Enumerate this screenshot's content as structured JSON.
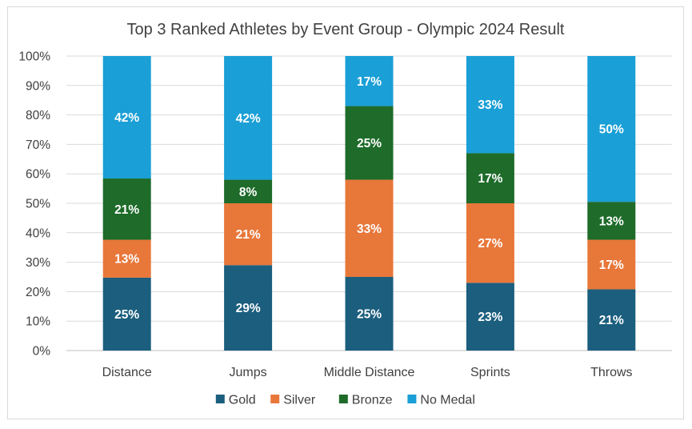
{
  "chart_data": {
    "type": "bar",
    "stacked": true,
    "percent_stacked": true,
    "title": "Top 3 Ranked Athletes by Event Group - Olympic 2024 Result",
    "xlabel": "",
    "ylabel": "",
    "ylim": [
      0,
      100
    ],
    "yticks": [
      "0%",
      "10%",
      "20%",
      "30%",
      "40%",
      "50%",
      "60%",
      "70%",
      "80%",
      "90%",
      "100%"
    ],
    "grid": true,
    "legend_position": "bottom",
    "categories": [
      "Distance",
      "Jumps",
      "Middle Distance",
      "Sprints",
      "Throws"
    ],
    "series": [
      {
        "name": "Gold",
        "color": "#1b5e7e",
        "values": [
          25,
          29,
          25,
          23,
          21
        ],
        "labels": [
          "25%",
          "29%",
          "25%",
          "23%",
          "21%"
        ]
      },
      {
        "name": "Silver",
        "color": "#e8773a",
        "values": [
          13,
          21,
          33,
          27,
          17
        ],
        "labels": [
          "13%",
          "21%",
          "33%",
          "27%",
          "17%"
        ]
      },
      {
        "name": "Bronze",
        "color": "#1e6b2a",
        "values": [
          21,
          8,
          25,
          17,
          13
        ],
        "labels": [
          "21%",
          "8%",
          "25%",
          "17%",
          "13%"
        ]
      },
      {
        "name": "No Medal",
        "color": "#1a9fd6",
        "values": [
          42,
          42,
          17,
          33,
          50
        ],
        "labels": [
          "42%",
          "42%",
          "17%",
          "33%",
          "50%"
        ]
      }
    ]
  }
}
